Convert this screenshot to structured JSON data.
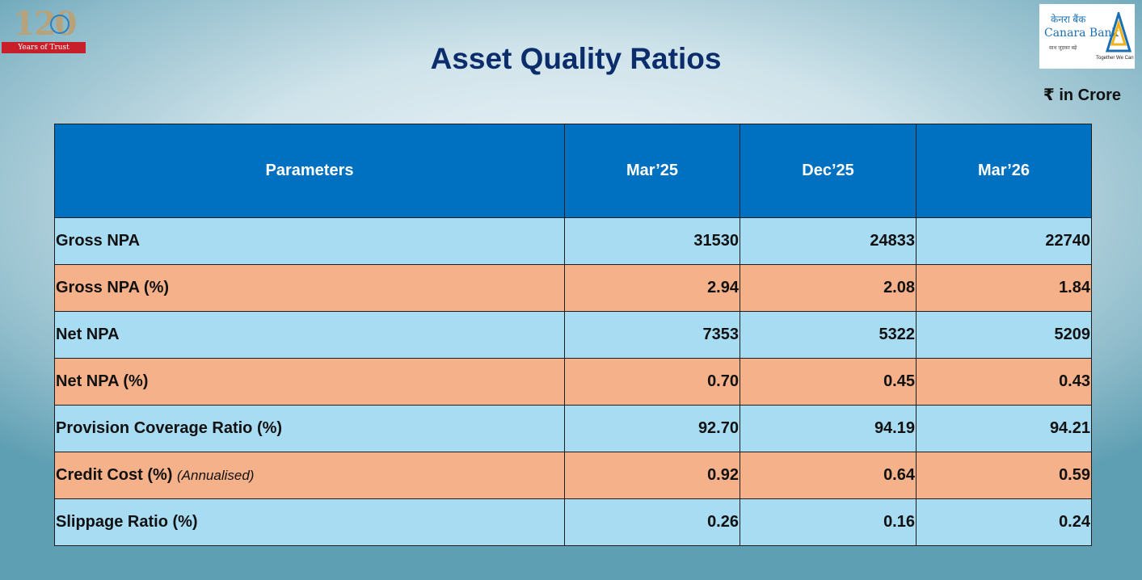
{
  "badge": {
    "number": "120",
    "ribbon_text": "Years of Trust"
  },
  "logo": {
    "hindi_name": "केनरा बैंक",
    "name": "Canara Bank",
    "tagline_hindi": "साथ जुड़कर बढ़ें",
    "tagline": "Together We Can"
  },
  "title": "Asset Quality Ratios",
  "unit": "₹ in Crore",
  "table": {
    "headers": [
      "Parameters",
      "Mar’25",
      "Dec’25",
      "Mar’26"
    ],
    "rows": [
      {
        "param": "Gross NPA",
        "note": "",
        "values": [
          "31530",
          "24833",
          "22740"
        ],
        "color": "blue"
      },
      {
        "param": "Gross NPA (%)",
        "note": "",
        "values": [
          "2.94",
          "2.08",
          "1.84"
        ],
        "color": "orange"
      },
      {
        "param": "Net NPA",
        "note": "",
        "values": [
          "7353",
          "5322",
          "5209"
        ],
        "color": "blue"
      },
      {
        "param": "Net NPA (%)",
        "note": "",
        "values": [
          "0.70",
          "0.45",
          "0.43"
        ],
        "color": "orange"
      },
      {
        "param": "Provision Coverage Ratio (%)",
        "note": "",
        "values": [
          "92.70",
          "94.19",
          "94.21"
        ],
        "color": "blue"
      },
      {
        "param": "Credit Cost (%)",
        "note": "(Annualised)",
        "values": [
          "0.92",
          "0.64",
          "0.59"
        ],
        "color": "orange"
      },
      {
        "param": "Slippage Ratio (%)",
        "note": "",
        "values": [
          "0.26",
          "0.16",
          "0.24"
        ],
        "color": "blue"
      }
    ]
  },
  "colors": {
    "header_bg": "#0070c0",
    "row_blue": "#a8dcf2",
    "row_orange": "#f5b189",
    "title": "#0b2d6b"
  }
}
